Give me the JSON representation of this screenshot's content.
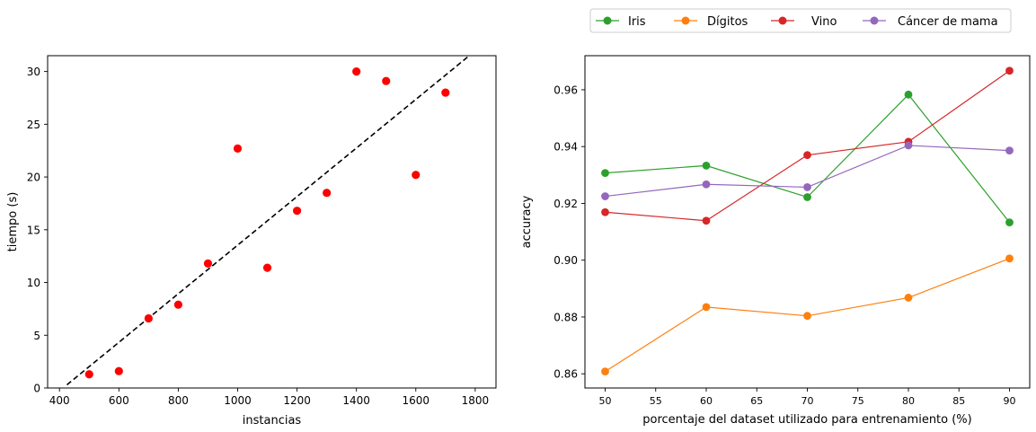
{
  "chart_data": [
    {
      "type": "scatter",
      "xlabel": "instancias",
      "ylabel": "tiempo (s)",
      "xlim": [
        360,
        1870
      ],
      "ylim": [
        0,
        31.5
      ],
      "xticks": [
        400,
        600,
        800,
        1000,
        1200,
        1400,
        1600,
        1800
      ],
      "yticks": [
        0,
        5,
        10,
        15,
        20,
        25,
        30
      ],
      "grid": false,
      "x": [
        500,
        600,
        700,
        800,
        900,
        1000,
        1100,
        1200,
        1300,
        1400,
        1500,
        1600,
        1700
      ],
      "y": [
        1.3,
        1.6,
        6.6,
        7.9,
        11.8,
        22.7,
        11.4,
        16.8,
        18.5,
        30.0,
        29.1,
        20.2,
        28.0
      ],
      "point_color": "#ff0000",
      "trend_line": {
        "style": "dashed",
        "color": "#000000",
        "x": [
          425,
          1780
        ],
        "y": [
          0.3,
          31.5
        ]
      }
    },
    {
      "type": "line",
      "xlabel": "porcentaje del dataset utilizado para entrenamiento (%)",
      "ylabel": "accuracy",
      "xlim": [
        48,
        92
      ],
      "ylim": [
        0.855,
        0.972
      ],
      "xticks": [
        50,
        55,
        60,
        65,
        70,
        75,
        80,
        85,
        90
      ],
      "yticks": [
        0.86,
        0.88,
        0.9,
        0.92,
        0.94,
        0.96
      ],
      "grid": false,
      "legend_position": "top, above plot, 4 columns",
      "x": [
        50,
        60,
        70,
        80,
        90
      ],
      "series": [
        {
          "name": "Iris",
          "color": "#2ca02c",
          "values": [
            0.9307,
            0.9333,
            0.9222,
            0.9583,
            0.9133
          ]
        },
        {
          "name": "Dígitos",
          "color": "#ff7f0e",
          "values": [
            0.8608,
            0.8835,
            0.8804,
            0.8868,
            0.9006
          ]
        },
        {
          "name": "Vino",
          "color": "#d62728",
          "values": [
            0.9169,
            0.9139,
            0.937,
            0.9417,
            0.9667
          ]
        },
        {
          "name": "Cáncer de mama",
          "color": "#9467bd",
          "values": [
            0.9225,
            0.9267,
            0.9257,
            0.9404,
            0.9386
          ]
        }
      ]
    }
  ]
}
